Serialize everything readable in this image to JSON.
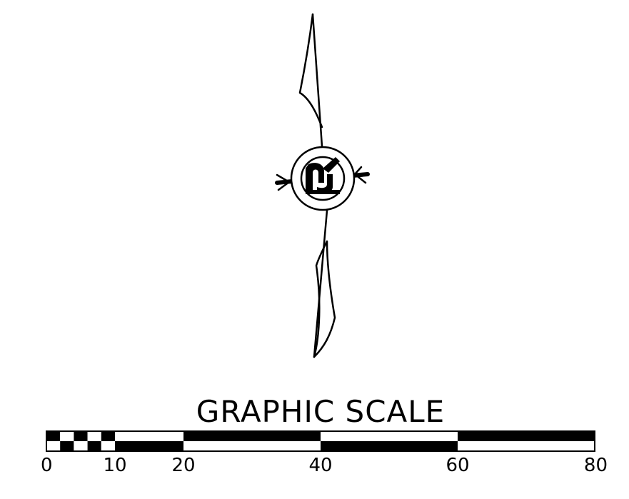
{
  "drawing": {
    "north_arrow_symbol": "north-arrow-icon"
  },
  "scale": {
    "title": "GRAPHIC SCALE",
    "tick_labels": [
      "0",
      "10",
      "20",
      "40",
      "60",
      "80"
    ],
    "tick_values": [
      0,
      10,
      20,
      40,
      60,
      80
    ],
    "max_value": 80
  },
  "colors": {
    "ink": "#000000",
    "paper": "#ffffff"
  }
}
